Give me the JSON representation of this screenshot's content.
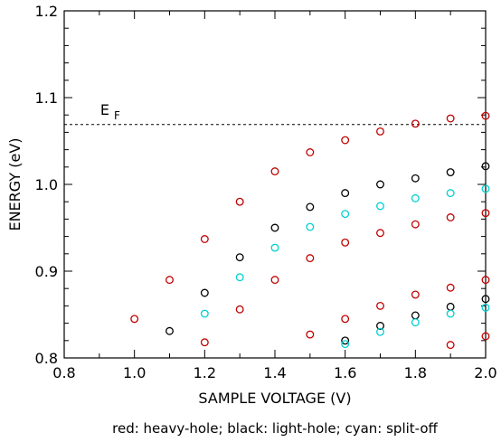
{
  "chart_data": {
    "type": "scatter",
    "title": "",
    "xlabel": "SAMPLE VOLTAGE (V)",
    "ylabel": "ENERGY (eV)",
    "xlim": [
      0.8,
      2.0
    ],
    "ylim": [
      0.8,
      1.2
    ],
    "xticks": [
      0.8,
      1.0,
      1.2,
      1.4,
      1.6,
      1.8,
      2.0
    ],
    "xtick_labels": [
      "0.8",
      "1.0",
      "1.2",
      "1.4",
      "1.6",
      "1.8",
      "2.0"
    ],
    "yticks": [
      0.8,
      0.9,
      1.0,
      1.1,
      1.2
    ],
    "ytick_labels": [
      "0.8",
      "0.9",
      "1.0",
      "1.1",
      "1.2"
    ],
    "grid": false,
    "caption": "red: heavy-hole; black: light-hole; cyan: split-off",
    "fermi_level": {
      "value": 1.069,
      "label_main": "E",
      "label_sub": "F",
      "style": "dashed"
    },
    "series": [
      {
        "color": "#c00000",
        "points": [
          [
            1.0,
            0.845
          ],
          [
            1.1,
            0.89
          ],
          [
            1.2,
            0.818
          ],
          [
            1.2,
            0.937
          ],
          [
            1.3,
            0.856
          ],
          [
            1.3,
            0.98
          ],
          [
            1.4,
            0.89
          ],
          [
            1.4,
            1.015
          ],
          [
            1.5,
            0.827
          ],
          [
            1.5,
            0.915
          ],
          [
            1.5,
            1.037
          ],
          [
            1.6,
            0.845
          ],
          [
            1.6,
            0.933
          ],
          [
            1.6,
            1.051
          ],
          [
            1.7,
            0.86
          ],
          [
            1.7,
            0.944
          ],
          [
            1.7,
            1.061
          ],
          [
            1.8,
            0.873
          ],
          [
            1.8,
            0.954
          ],
          [
            1.8,
            1.07
          ],
          [
            1.9,
            0.815
          ],
          [
            1.9,
            0.881
          ],
          [
            1.9,
            0.962
          ],
          [
            1.9,
            1.076
          ],
          [
            2.0,
            0.825
          ],
          [
            2.0,
            0.89
          ],
          [
            2.0,
            0.967
          ],
          [
            2.0,
            1.079
          ]
        ]
      },
      {
        "color": "#000000",
        "points": [
          [
            1.1,
            0.831
          ],
          [
            1.2,
            0.875
          ],
          [
            1.3,
            0.916
          ],
          [
            1.4,
            0.95
          ],
          [
            1.5,
            0.974
          ],
          [
            1.6,
            0.82
          ],
          [
            1.6,
            0.99
          ],
          [
            1.7,
            0.837
          ],
          [
            1.7,
            1.0
          ],
          [
            1.8,
            0.849
          ],
          [
            1.8,
            1.007
          ],
          [
            1.9,
            0.859
          ],
          [
            1.9,
            1.014
          ],
          [
            2.0,
            0.868
          ],
          [
            2.0,
            1.021
          ]
        ]
      },
      {
        "color": "#00d0d0",
        "points": [
          [
            1.2,
            0.851
          ],
          [
            1.3,
            0.893
          ],
          [
            1.4,
            0.927
          ],
          [
            1.5,
            0.951
          ],
          [
            1.6,
            0.816
          ],
          [
            1.6,
            0.966
          ],
          [
            1.7,
            0.83
          ],
          [
            1.7,
            0.975
          ],
          [
            1.8,
            0.841
          ],
          [
            1.8,
            0.984
          ],
          [
            1.9,
            0.851
          ],
          [
            1.9,
            0.99
          ],
          [
            2.0,
            0.858
          ],
          [
            2.0,
            0.995
          ]
        ]
      }
    ]
  }
}
